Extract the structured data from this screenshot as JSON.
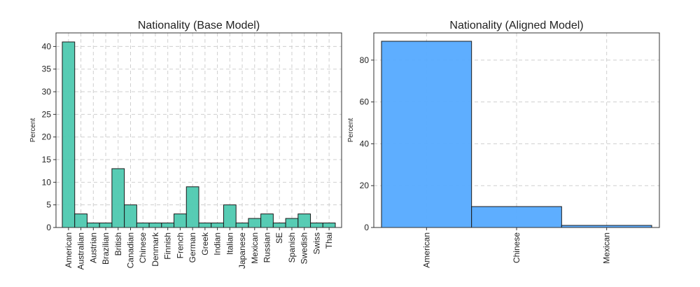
{
  "chart_data": [
    {
      "type": "bar",
      "title": "Nationality (Base Model)",
      "xlabel": "",
      "ylabel": "Percent",
      "categories": [
        "American",
        "Australian",
        "Austrian",
        "Brazilian",
        "British",
        "Canadian",
        "Chinese",
        "Denmark",
        "Finnish",
        "French",
        "German",
        "Greek",
        "Indian",
        "Italian",
        "Japanese",
        "Mexican",
        "Russian",
        "SE",
        "Spanish",
        "Swedish",
        "Swiss",
        "Thai"
      ],
      "values": [
        41,
        3,
        1,
        1,
        13,
        5,
        1,
        1,
        1,
        3,
        9,
        1,
        1,
        5,
        1,
        2,
        3,
        1,
        2,
        3,
        1,
        1
      ],
      "ylim": [
        0,
        43
      ],
      "yticks": [
        0,
        5,
        10,
        15,
        20,
        25,
        30,
        35,
        40
      ],
      "grid": true,
      "color": "#4ec9b0"
    },
    {
      "type": "bar",
      "title": "Nationality (Aligned Model)",
      "xlabel": "",
      "ylabel": "Percent",
      "categories": [
        "American",
        "Chinese",
        "Mexican"
      ],
      "values": [
        89,
        10,
        1
      ],
      "ylim": [
        0,
        93
      ],
      "yticks": [
        0,
        20,
        40,
        60,
        80
      ],
      "grid": true,
      "color": "#55aaff"
    }
  ]
}
